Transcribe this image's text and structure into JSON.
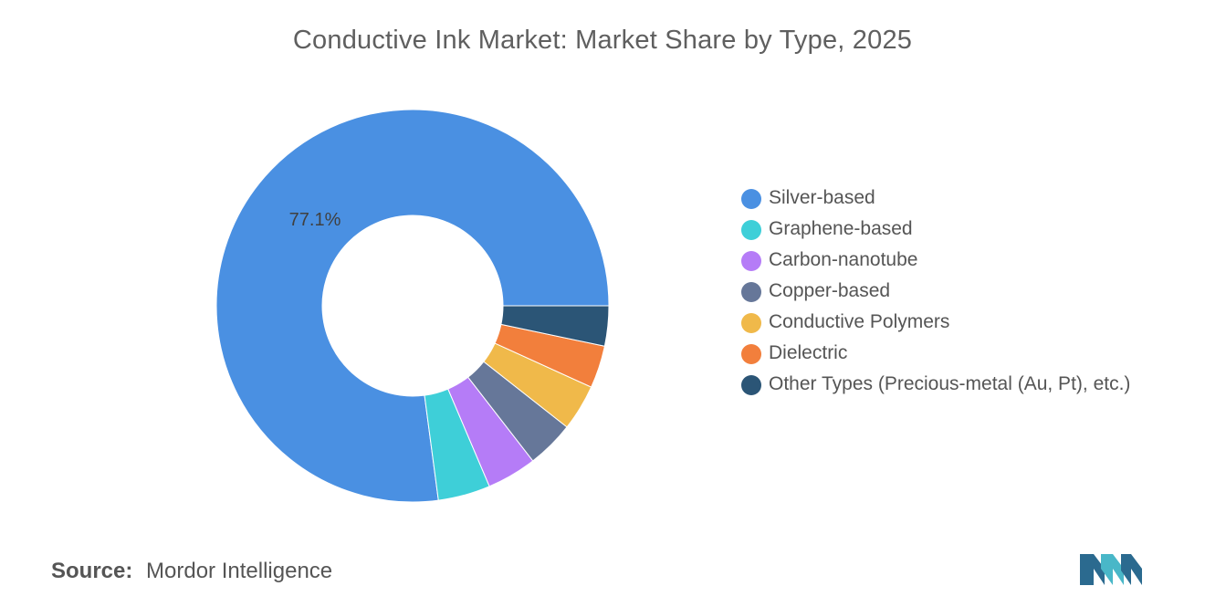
{
  "chart_data": {
    "type": "pie",
    "title": "Conductive Ink Market: Market Share by Type, 2025",
    "donut": true,
    "categories": [
      "Silver-based",
      "Graphene-based",
      "Carbon-nanotube",
      "Copper-based",
      "Conductive Polymers",
      "Dielectric",
      "Other Types (Precious-metal (Au, Pt), etc.)"
    ],
    "values": [
      77.1,
      4.3,
      4.1,
      3.9,
      3.8,
      3.5,
      3.3
    ],
    "colors": [
      "#4a90e2",
      "#3ecfd8",
      "#b57cf7",
      "#667799",
      "#f0b94a",
      "#f27f3c",
      "#2b5576"
    ],
    "data_labels": [
      "77.1%",
      "",
      "",
      "",
      "",
      "",
      ""
    ],
    "legend_position": "right"
  },
  "source": {
    "label": "Source:",
    "value": "Mordor Intelligence"
  },
  "logo": {
    "icon": "mordor-intelligence-logo",
    "colors": [
      "#2b6a8f",
      "#49b7c8"
    ]
  }
}
